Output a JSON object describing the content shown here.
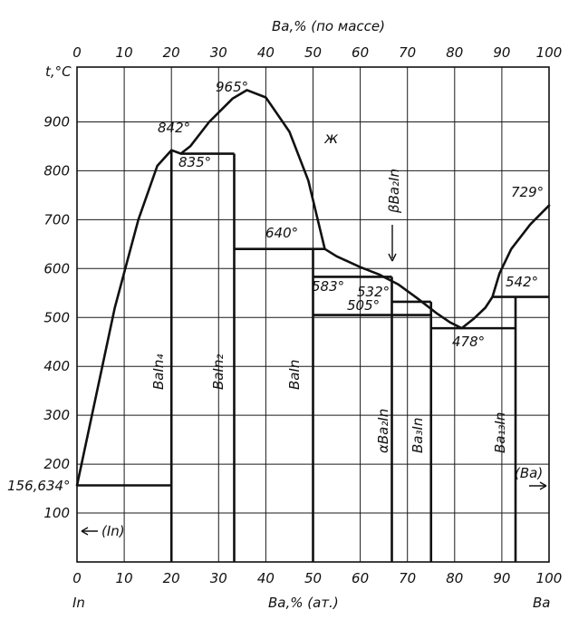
{
  "top_axis": {
    "title": "Ba,% (по массе)",
    "ticks": [
      "0",
      "10",
      "20",
      "30",
      "40",
      "50",
      "60",
      "70",
      "80",
      "90",
      "100"
    ]
  },
  "bottom_axis": {
    "title": "Ba,% (ат.)",
    "left_label": "In",
    "right_label": "Ba",
    "ticks": [
      "0",
      "10",
      "20",
      "30",
      "40",
      "50",
      "60",
      "70",
      "80",
      "90",
      "100"
    ]
  },
  "y_axis": {
    "title": "t,°C",
    "ticks": [
      "100",
      "200",
      "300",
      "400",
      "500",
      "600",
      "700",
      "800",
      "900"
    ]
  },
  "annotations": {
    "t965": "965°",
    "t842": "842°",
    "t835": "835°",
    "t640": "640°",
    "t583": "583°",
    "t532": "532°",
    "t505": "505°",
    "t478": "478°",
    "t542": "542°",
    "t729": "729°",
    "t156": "156,634°",
    "liquid": "ж",
    "in_arrow": "(In)",
    "ba_arrow": "(Ba)"
  },
  "phases": {
    "baln4": "BaIn₄",
    "baln2": "BaIn₂",
    "baln": "BaIn",
    "aba2in": "αBa₂In",
    "bba2in": "βBa₂In",
    "ba3in": "Ba₃In",
    "ba13in": "Ba₁₃In"
  },
  "chart_data": {
    "type": "phase_diagram",
    "x_axis": "Ba, % (at.)",
    "x_range": [
      0,
      100
    ],
    "y_range": [
      0,
      1000
    ],
    "liquidus": [
      {
        "x": 0,
        "y": 156.634
      },
      {
        "x": 8,
        "y": 520
      },
      {
        "x": 13,
        "y": 700
      },
      {
        "x": 17,
        "y": 810
      },
      {
        "x": 20,
        "y": 842
      },
      {
        "x": 22,
        "y": 835
      },
      {
        "x": 24,
        "y": 850
      },
      {
        "x": 28,
        "y": 900
      },
      {
        "x": 33,
        "y": 948
      },
      {
        "x": 36,
        "y": 965
      },
      {
        "x": 40,
        "y": 950
      },
      {
        "x": 45,
        "y": 880
      },
      {
        "x": 49,
        "y": 780
      },
      {
        "x": 51,
        "y": 700
      },
      {
        "x": 52.5,
        "y": 640
      },
      {
        "x": 55,
        "y": 625
      },
      {
        "x": 60,
        "y": 603
      },
      {
        "x": 64,
        "y": 588
      },
      {
        "x": 68,
        "y": 568
      },
      {
        "x": 72,
        "y": 540
      },
      {
        "x": 76,
        "y": 510
      },
      {
        "x": 79,
        "y": 490
      },
      {
        "x": 81.5,
        "y": 478
      },
      {
        "x": 84,
        "y": 497
      },
      {
        "x": 86.5,
        "y": 520
      },
      {
        "x": 88,
        "y": 542
      },
      {
        "x": 89.5,
        "y": 590
      },
      {
        "x": 92,
        "y": 640
      },
      {
        "x": 96,
        "y": 690
      },
      {
        "x": 100,
        "y": 729
      }
    ],
    "isotherms": [
      {
        "t": 156.634,
        "x_start": 0,
        "x_end": 20
      },
      {
        "t": 835,
        "x_start": 22,
        "x_end": 33.3
      },
      {
        "t": 640,
        "x_start": 33.3,
        "x_end": 52.5
      },
      {
        "t": 583,
        "x_start": 50,
        "x_end": 66.7
      },
      {
        "t": 532,
        "x_start": 66.7,
        "x_end": 75
      },
      {
        "t": 505,
        "x_start": 50,
        "x_end": 75
      },
      {
        "t": 478,
        "x_start": 75,
        "x_end": 92.9
      },
      {
        "t": 542,
        "x_start": 88,
        "x_end": 100
      }
    ],
    "compounds": [
      {
        "name": "BaIn₄",
        "x": 20
      },
      {
        "name": "BaIn₂",
        "x": 33.3
      },
      {
        "name": "BaIn",
        "x": 50
      },
      {
        "name": "Ba₂In",
        "x": 66.7
      },
      {
        "name": "Ba₃In",
        "x": 75
      },
      {
        "name": "Ba₁₃In",
        "x": 92.9
      }
    ],
    "special_points": [
      {
        "label": "965°",
        "x": 36,
        "y": 965
      },
      {
        "label": "842°",
        "x": 20,
        "y": 842
      },
      {
        "label": "478°",
        "x": 81.5,
        "y": 478
      },
      {
        "label": "729°",
        "x": 100,
        "y": 729
      }
    ]
  }
}
